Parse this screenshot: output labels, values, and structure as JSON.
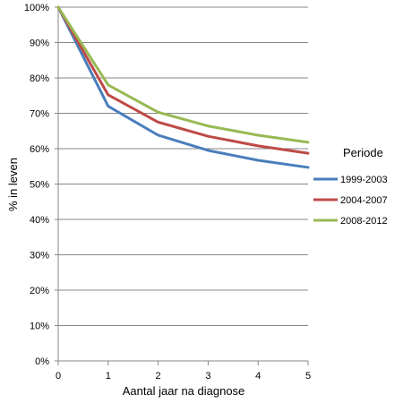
{
  "chart_data": {
    "type": "line",
    "title": "",
    "xlabel": "Aantal jaar na diagnose",
    "ylabel": "% in leven",
    "x": [
      0,
      1,
      2,
      3,
      4,
      5
    ],
    "xlim": [
      0,
      5
    ],
    "ylim": [
      0,
      100
    ],
    "y_ticks": [
      "0%",
      "10%",
      "20%",
      "30%",
      "40%",
      "50%",
      "60%",
      "70%",
      "80%",
      "90%",
      "100%"
    ],
    "x_ticks": [
      "0",
      "1",
      "2",
      "3",
      "4",
      "5"
    ],
    "grid": "horizontal",
    "legend_title": "Periode",
    "legend_position": "right",
    "series": [
      {
        "name": "1999-2003",
        "color": "#4a7ebb",
        "values": [
          100,
          72,
          63.8,
          59.5,
          56.7,
          54.7
        ]
      },
      {
        "name": "2004-2007",
        "color": "#be4b48",
        "values": [
          100,
          75.2,
          67.5,
          63.5,
          60.8,
          58.7
        ]
      },
      {
        "name": "2008-2012",
        "color": "#98b954",
        "values": [
          100,
          78,
          70.3,
          66.4,
          63.8,
          61.8
        ]
      }
    ]
  }
}
